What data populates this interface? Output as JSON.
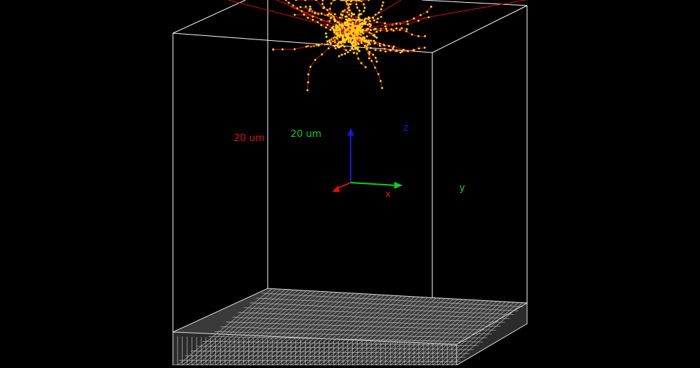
{
  "scale_labels": {
    "x": "20 um",
    "y": "20 um"
  },
  "axis_labels": {
    "x": "x",
    "y": "y",
    "z": "z"
  },
  "colors": {
    "background": "#000000",
    "box_edges": "#ffffff",
    "mesh": "#d8d8d8",
    "x_axis": "#e01010",
    "y_axis": "#10d010",
    "z_axis": "#1818e0",
    "track": "#d01010",
    "hit": "#ffd21a"
  }
}
